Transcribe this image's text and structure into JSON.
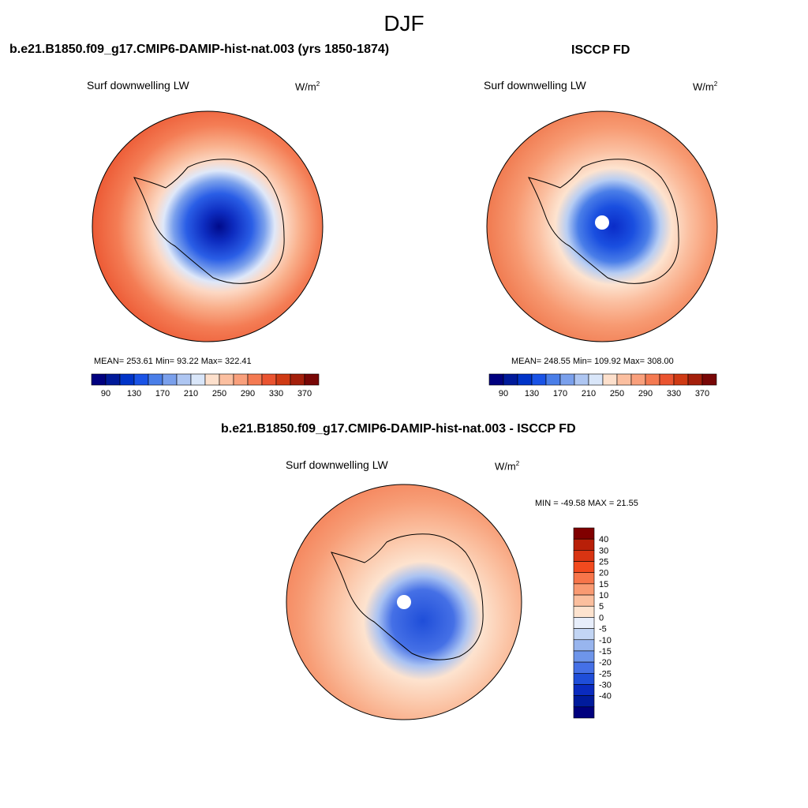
{
  "figure": {
    "title": "DJF",
    "units_base": "W/m",
    "units_exp": "2"
  },
  "panels": {
    "model": {
      "title": "b.e21.B1850.f09_g17.CMIP6-DAMIP-hist-nat.003 (yrs 1850-1874)",
      "variable": "Surf downwelling LW",
      "stats": "MEAN= 253.61  Min=  93.22  Max= 322.41"
    },
    "obs": {
      "title": "ISCCP FD",
      "variable": "Surf downwelling LW",
      "stats": "MEAN= 248.55  Min= 109.92  Max= 308.00"
    },
    "diff": {
      "title": "b.e21.B1850.f09_g17.CMIP6-DAMIP-hist-nat.003 - ISCCP FD",
      "variable": "Surf downwelling LW",
      "stats": "MIN = -49.58 MAX =  21.55"
    }
  },
  "colorbars": {
    "horizontal": {
      "colors": [
        "#00007f",
        "#001a9a",
        "#0033c8",
        "#1a53e6",
        "#4a7ee8",
        "#7aa0ec",
        "#aec6f2",
        "#d9e6f9",
        "#fde0cc",
        "#fbbfa0",
        "#f9a07c",
        "#f47a52",
        "#ea5430",
        "#cf3a14",
        "#a41f0b",
        "#780706"
      ],
      "labels": [
        "90",
        "130",
        "170",
        "210",
        "250",
        "290",
        "330",
        "370"
      ]
    },
    "vertical": {
      "colors": [
        "#800000",
        "#b81f08",
        "#d83412",
        "#f24a1e",
        "#f7754a",
        "#f99a72",
        "#fbbf9e",
        "#fde3cf",
        "#e7eefb",
        "#c2d5f4",
        "#98b5ee",
        "#6e95ea",
        "#4570e6",
        "#1f4ed9",
        "#0a2bbf",
        "#001b9c",
        "#00007e"
      ],
      "labels": [
        "40",
        "30",
        "25",
        "20",
        "15",
        "10",
        "5",
        "0",
        "-5",
        "-10",
        "-15",
        "-20",
        "-25",
        "-30",
        "-40"
      ]
    }
  }
}
